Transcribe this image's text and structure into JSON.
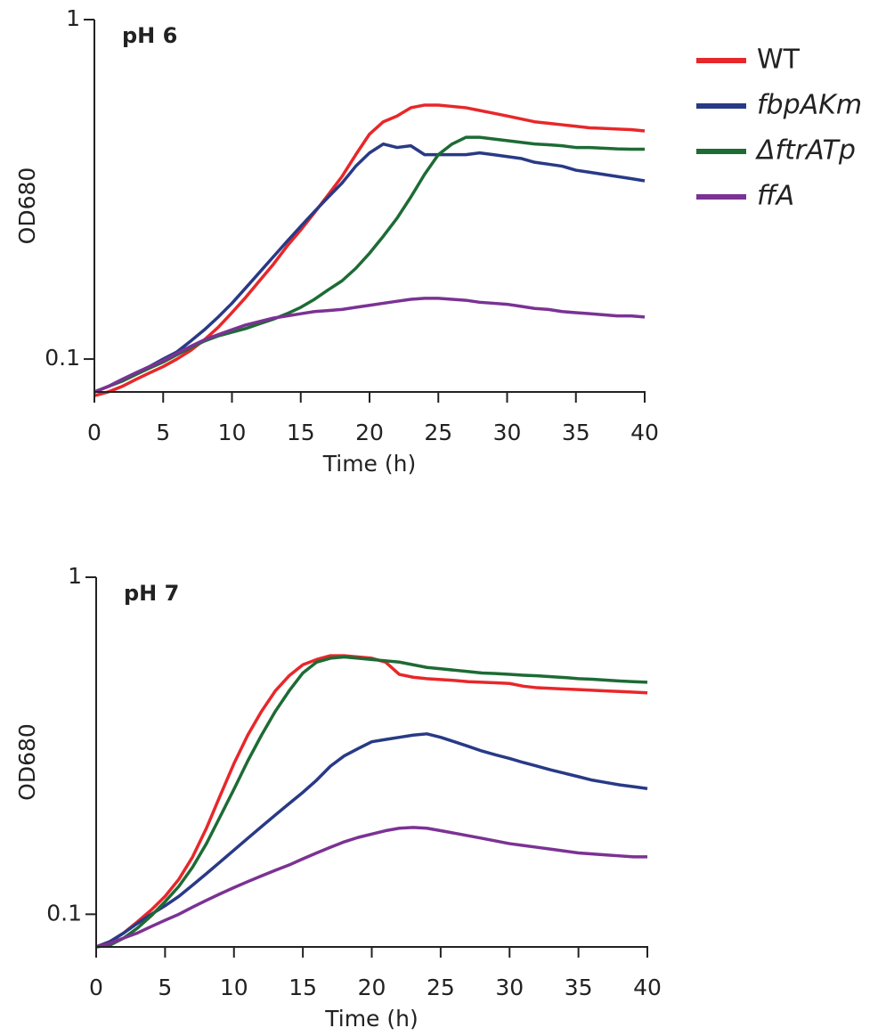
{
  "chart_data": [
    {
      "type": "line",
      "title": "pH 6",
      "xlabel": "Time (h)",
      "ylabel": "OD680",
      "log_y": true,
      "legend": "right",
      "xlim": [
        0,
        40
      ],
      "xticks": [
        0,
        5,
        10,
        15,
        20,
        25,
        30,
        35,
        40
      ],
      "ylim": [
        0.08,
        1
      ],
      "yticks": [
        0.1,
        1
      ],
      "x": [
        0,
        1,
        2,
        3,
        4,
        5,
        6,
        7,
        8,
        9,
        10,
        11,
        12,
        13,
        14,
        15,
        16,
        17,
        18,
        19,
        20,
        21,
        22,
        23,
        24,
        25,
        26,
        27,
        28,
        29,
        30,
        31,
        32,
        33,
        34,
        35,
        36,
        37,
        38,
        39,
        40
      ],
      "series": [
        {
          "name": "WT",
          "color": "#e8272a",
          "values": [
            0.078,
            0.08,
            0.083,
            0.087,
            0.091,
            0.095,
            0.1,
            0.106,
            0.114,
            0.124,
            0.137,
            0.152,
            0.17,
            0.19,
            0.215,
            0.24,
            0.27,
            0.305,
            0.345,
            0.4,
            0.46,
            0.5,
            0.52,
            0.55,
            0.56,
            0.56,
            0.555,
            0.55,
            0.54,
            0.53,
            0.52,
            0.51,
            0.5,
            0.495,
            0.49,
            0.485,
            0.48,
            0.478,
            0.476,
            0.474,
            0.47
          ]
        },
        {
          "name": "fbpAKm",
          "color": "#283a86",
          "values": [
            0.08,
            0.083,
            0.087,
            0.091,
            0.095,
            0.1,
            0.105,
            0.113,
            0.122,
            0.133,
            0.146,
            0.162,
            0.18,
            0.2,
            0.222,
            0.246,
            0.272,
            0.3,
            0.33,
            0.37,
            0.405,
            0.43,
            0.42,
            0.425,
            0.4,
            0.4,
            0.4,
            0.4,
            0.405,
            0.4,
            0.395,
            0.39,
            0.38,
            0.375,
            0.37,
            0.36,
            0.355,
            0.35,
            0.345,
            0.34,
            0.335
          ]
        },
        {
          "name": "ΔftrATp",
          "color": "#1d6b35",
          "values": [
            0.08,
            0.083,
            0.086,
            0.09,
            0.094,
            0.098,
            0.103,
            0.108,
            0.113,
            0.117,
            0.12,
            0.123,
            0.127,
            0.131,
            0.136,
            0.142,
            0.15,
            0.16,
            0.17,
            0.185,
            0.205,
            0.23,
            0.26,
            0.3,
            0.35,
            0.4,
            0.43,
            0.45,
            0.45,
            0.445,
            0.44,
            0.435,
            0.43,
            0.428,
            0.425,
            0.42,
            0.42,
            0.418,
            0.416,
            0.415,
            0.415
          ]
        },
        {
          "name": "ffA",
          "color": "#7b3294",
          "values": [
            0.08,
            0.083,
            0.087,
            0.091,
            0.095,
            0.099,
            0.104,
            0.109,
            0.114,
            0.118,
            0.122,
            0.126,
            0.129,
            0.132,
            0.134,
            0.136,
            0.138,
            0.139,
            0.14,
            0.142,
            0.144,
            0.146,
            0.148,
            0.15,
            0.151,
            0.151,
            0.15,
            0.149,
            0.147,
            0.146,
            0.145,
            0.143,
            0.141,
            0.14,
            0.138,
            0.137,
            0.136,
            0.135,
            0.134,
            0.134,
            0.133
          ]
        }
      ]
    },
    {
      "type": "line",
      "title": "pH 7",
      "xlabel": "Time (h)",
      "ylabel": "OD680",
      "log_y": true,
      "xlim": [
        0,
        40
      ],
      "xticks": [
        0,
        5,
        10,
        15,
        20,
        25,
        30,
        35,
        40
      ],
      "ylim": [
        0.08,
        1
      ],
      "yticks": [
        0.1,
        1
      ],
      "x": [
        0,
        1,
        2,
        3,
        4,
        5,
        6,
        7,
        8,
        9,
        10,
        11,
        12,
        13,
        14,
        15,
        16,
        17,
        18,
        19,
        20,
        21,
        22,
        23,
        24,
        25,
        26,
        27,
        28,
        29,
        30,
        31,
        32,
        33,
        34,
        35,
        36,
        37,
        38,
        39,
        40
      ],
      "series": [
        {
          "color": "#e8272a",
          "values": [
            0.08,
            0.083,
            0.088,
            0.095,
            0.103,
            0.113,
            0.127,
            0.148,
            0.18,
            0.225,
            0.28,
            0.34,
            0.4,
            0.46,
            0.51,
            0.55,
            0.57,
            0.585,
            0.585,
            0.58,
            0.575,
            0.56,
            0.515,
            0.505,
            0.5,
            0.497,
            0.494,
            0.49,
            0.488,
            0.486,
            0.484,
            0.475,
            0.47,
            0.468,
            0.466,
            0.464,
            0.462,
            0.46,
            0.458,
            0.456,
            0.454
          ]
        },
        {
          "color": "#283a86",
          "values": [
            0.08,
            0.083,
            0.088,
            0.094,
            0.1,
            0.106,
            0.113,
            0.122,
            0.132,
            0.143,
            0.155,
            0.168,
            0.182,
            0.197,
            0.213,
            0.23,
            0.25,
            0.275,
            0.295,
            0.31,
            0.325,
            0.33,
            0.335,
            0.34,
            0.343,
            0.335,
            0.325,
            0.315,
            0.305,
            0.297,
            0.29,
            0.282,
            0.275,
            0.268,
            0.262,
            0.256,
            0.25,
            0.246,
            0.242,
            0.239,
            0.236
          ]
        },
        {
          "color": "#1d6b35",
          "values": [
            0.08,
            0.081,
            0.085,
            0.091,
            0.099,
            0.109,
            0.121,
            0.138,
            0.162,
            0.195,
            0.235,
            0.285,
            0.34,
            0.4,
            0.46,
            0.52,
            0.56,
            0.575,
            0.58,
            0.575,
            0.57,
            0.565,
            0.56,
            0.55,
            0.54,
            0.535,
            0.53,
            0.525,
            0.52,
            0.518,
            0.515,
            0.512,
            0.51,
            0.507,
            0.504,
            0.5,
            0.498,
            0.495,
            0.492,
            0.49,
            0.488
          ]
        },
        {
          "color": "#7b3294",
          "values": [
            0.08,
            0.082,
            0.085,
            0.088,
            0.092,
            0.096,
            0.1,
            0.105,
            0.11,
            0.115,
            0.12,
            0.125,
            0.13,
            0.135,
            0.14,
            0.146,
            0.152,
            0.158,
            0.164,
            0.169,
            0.173,
            0.177,
            0.18,
            0.181,
            0.18,
            0.177,
            0.174,
            0.171,
            0.168,
            0.165,
            0.162,
            0.16,
            0.158,
            0.156,
            0.154,
            0.152,
            0.151,
            0.15,
            0.149,
            0.148,
            0.148
          ]
        }
      ]
    }
  ]
}
